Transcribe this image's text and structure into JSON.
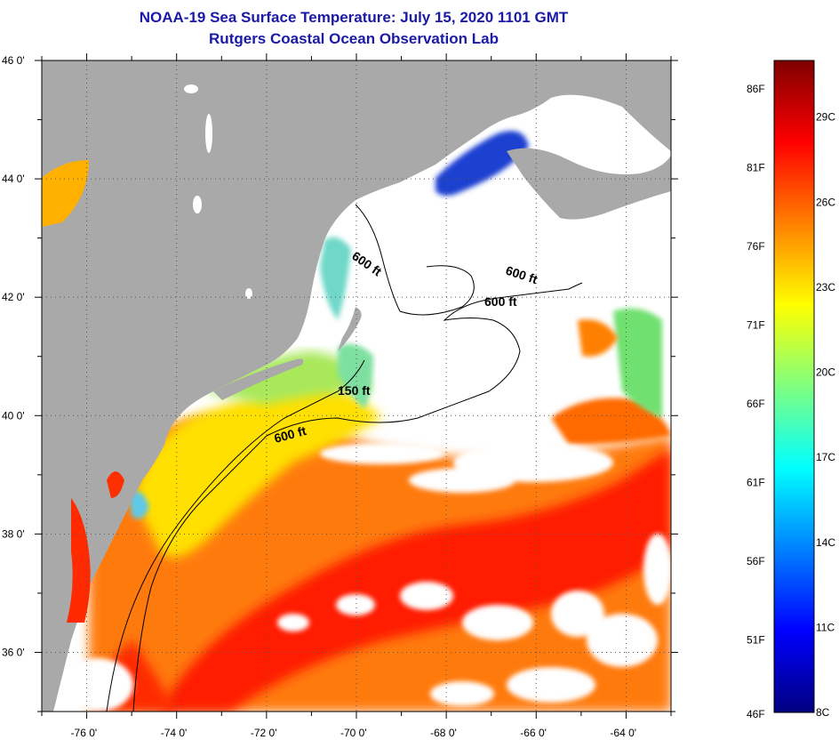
{
  "title": "NOAA-19 Sea Surface Temperature:  July 15, 2020 1101 GMT",
  "subtitle": "Rutgers Coastal Ocean Observation Lab",
  "map": {
    "lat_range": [
      35,
      46
    ],
    "lon_range": [
      -77,
      -63
    ],
    "lat_ticks": [
      "46 0'",
      "44 0'",
      "42 0'",
      "40 0'",
      "38 0'",
      "36 0'"
    ],
    "lon_ticks": [
      "-76 0'",
      "-74 0'",
      "-72 0'",
      "-70 0'",
      "-68 0'",
      "-66 0'",
      "-64 0'"
    ],
    "grid": true,
    "land_color": "#a9a9a9",
    "cloud_color": "#ffffff"
  },
  "contour_labels": [
    "600 ft",
    "600 ft",
    "600 ft",
    "150 ft",
    "600 ft"
  ],
  "colorbar": {
    "range_c": [
      8,
      31
    ],
    "fahrenheit_labels": [
      "86F",
      "81F",
      "76F",
      "71F",
      "66F",
      "61F",
      "56F",
      "51F",
      "46F"
    ],
    "celsius_labels": [
      "29C",
      "26C",
      "23C",
      "20C",
      "17C",
      "14C",
      "11C",
      "8C"
    ],
    "colors": [
      "#00007f",
      "#0000ff",
      "#0080ff",
      "#00ffff",
      "#80ff80",
      "#ffff00",
      "#ff8000",
      "#ff0000",
      "#7f0000"
    ]
  }
}
